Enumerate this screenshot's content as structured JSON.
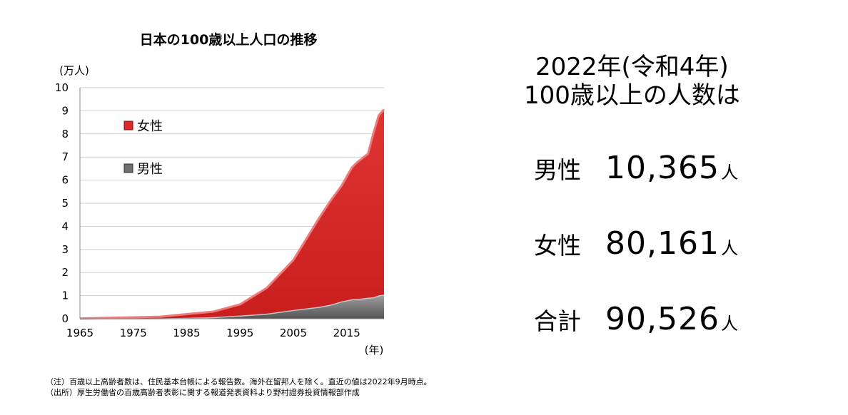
{
  "chart_data": {
    "type": "area",
    "stacked": true,
    "title": "日本の100歳以上人口の推移",
    "y_unit": "(万人)",
    "x_unit": "(年)",
    "xlim": [
      1965,
      2022
    ],
    "ylim": [
      0,
      10
    ],
    "x_ticks": [
      "1965",
      "1975",
      "1985",
      "1995",
      "2005",
      "2015"
    ],
    "y_ticks": [
      "0",
      "1",
      "2",
      "3",
      "4",
      "5",
      "6",
      "7",
      "8",
      "9",
      "10"
    ],
    "grid": true,
    "legend_position": "top-left inside",
    "x": [
      1965,
      1970,
      1975,
      1980,
      1985,
      1990,
      1995,
      2000,
      2005,
      2010,
      2012,
      2014,
      2016,
      2017,
      2018,
      2019,
      2020,
      2021,
      2022
    ],
    "series": [
      {
        "name": "男性",
        "color": "#6e6e6e",
        "values": [
          0.0,
          0.01,
          0.01,
          0.02,
          0.04,
          0.07,
          0.14,
          0.22,
          0.38,
          0.52,
          0.61,
          0.75,
          0.84,
          0.86,
          0.88,
          0.91,
          0.93,
          1.01,
          1.04
        ]
      },
      {
        "name": "女性",
        "color": "#d82a2a",
        "values": [
          0.01,
          0.03,
          0.05,
          0.07,
          0.16,
          0.24,
          0.48,
          1.11,
          2.16,
          3.9,
          4.51,
          4.99,
          5.71,
          5.92,
          6.08,
          6.23,
          7.09,
          7.79,
          8.02
        ]
      }
    ],
    "legend": [
      {
        "name": "女性",
        "color": "#d82a2a"
      },
      {
        "name": "男性",
        "color": "#6e6e6e"
      }
    ]
  },
  "headline": {
    "line1": "2022年(令和4年)",
    "line2": "100歳以上の人数は"
  },
  "stats": [
    {
      "label": "男性",
      "value": "10,365",
      "unit": "人"
    },
    {
      "label": "女性",
      "value": "80,161",
      "unit": "人"
    },
    {
      "label": "合計",
      "value": "90,526",
      "unit": "人"
    }
  ],
  "notes": {
    "note": "（注）百歳以上高齢者数は、住民基本台帳による報告数。海外在留邦人を除く。直近の値は2022年9月時点。",
    "source": "（出所）厚生労働省の百歳高齢者表彰に関する報道発表資料より野村證券投資情報部作成"
  }
}
